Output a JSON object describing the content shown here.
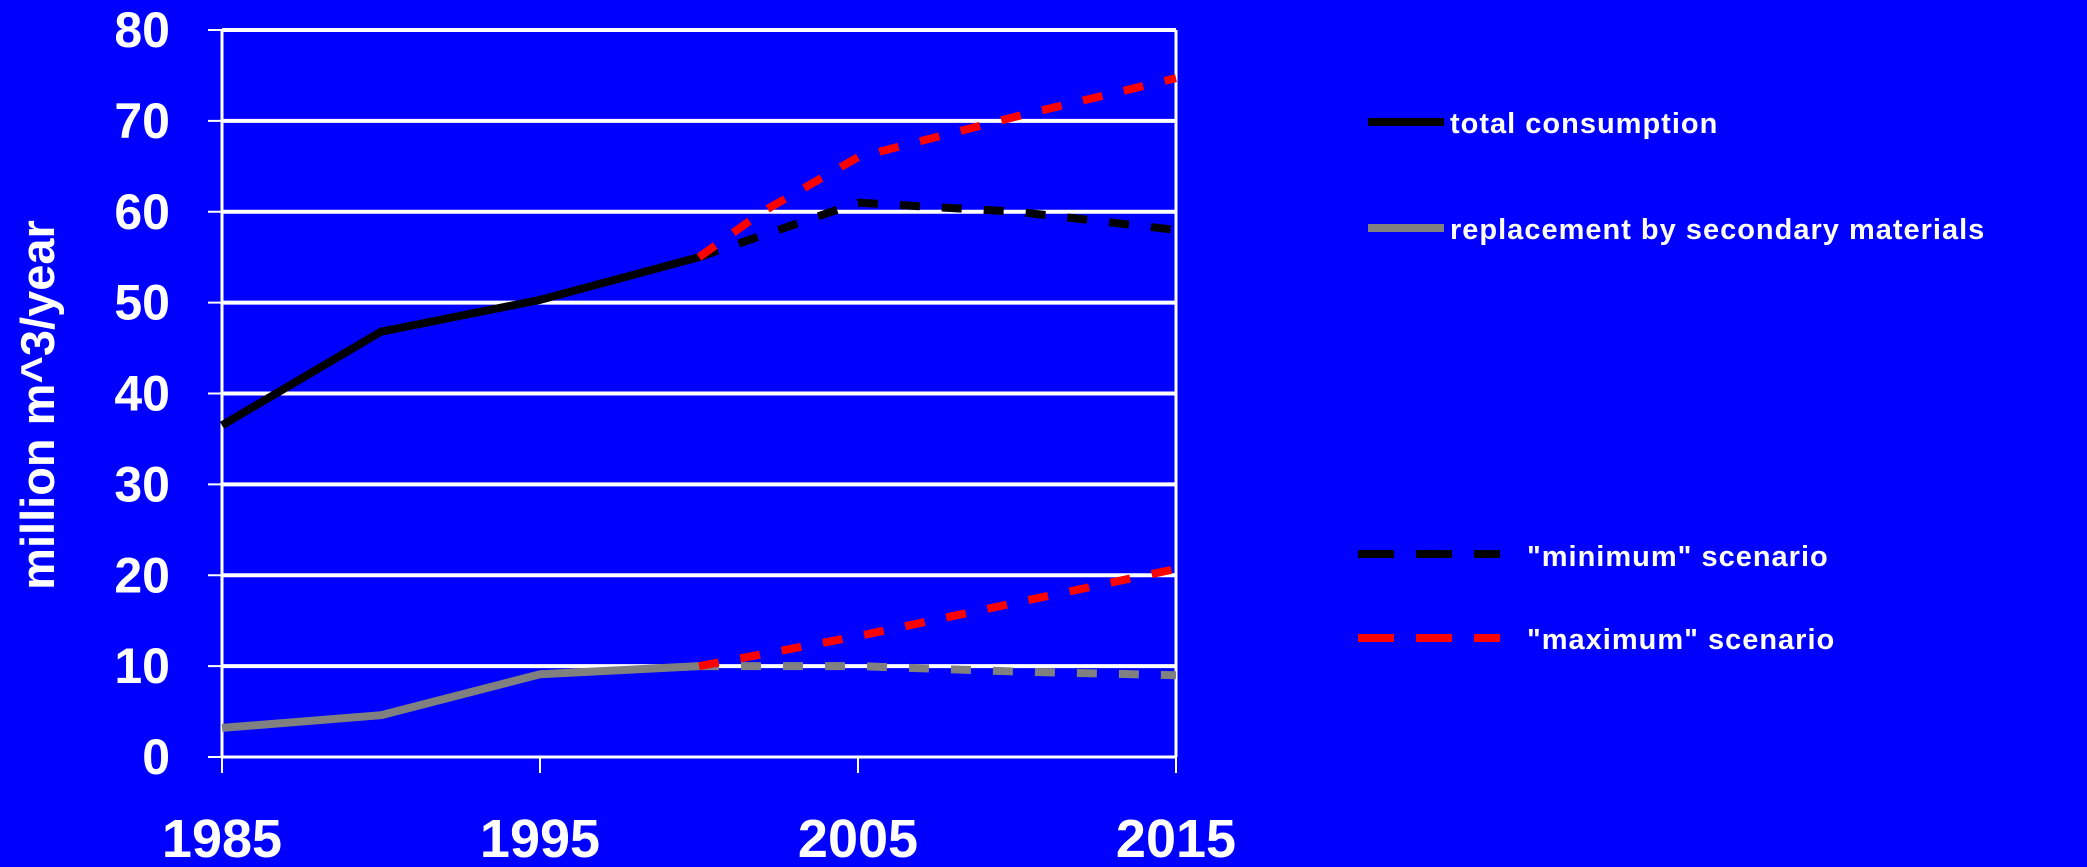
{
  "chart_data": {
    "type": "line",
    "title": "",
    "xlabel": "",
    "ylabel": "million m^3/year",
    "xlim": [
      1985,
      2015
    ],
    "ylim": [
      0,
      80
    ],
    "x_ticks": [
      1985,
      1995,
      2005,
      2015
    ],
    "y_ticks": [
      0,
      10,
      20,
      30,
      40,
      50,
      60,
      70,
      80
    ],
    "grid": "horizontal",
    "legend_position": "right",
    "series": [
      {
        "name": "total consumption",
        "color": "#000000",
        "style": "solid",
        "points": [
          [
            1985,
            36.5
          ],
          [
            1990,
            46.8
          ],
          [
            1995,
            50.3
          ],
          [
            2000,
            55
          ]
        ]
      },
      {
        "name": "replacement by secondary materials",
        "color": "#808080",
        "style": "solid",
        "points": [
          [
            1985,
            3.2
          ],
          [
            1990,
            4.6
          ],
          [
            1995,
            9.1
          ],
          [
            2000,
            10
          ]
        ]
      },
      {
        "name": "total consumption \"minimum\" scenario",
        "legend_ref": "minimum",
        "color": "#000000",
        "style": "dashed",
        "points": [
          [
            2000,
            55
          ],
          [
            2005,
            61
          ],
          [
            2010,
            60
          ],
          [
            2015,
            58
          ]
        ]
      },
      {
        "name": "total consumption \"maximum\" scenario",
        "legend_ref": "maximum",
        "color": "#FF0000",
        "style": "dashed",
        "points": [
          [
            2000,
            55
          ],
          [
            2002,
            60
          ],
          [
            2005,
            66
          ],
          [
            2010,
            70.5
          ],
          [
            2015,
            74.7
          ]
        ]
      },
      {
        "name": "replacement \"minimum\" scenario",
        "legend_ref": "minimum",
        "color": "#808080",
        "style": "dashed",
        "points": [
          [
            2000,
            10
          ],
          [
            2005,
            10
          ],
          [
            2010,
            9.4
          ],
          [
            2015,
            9
          ]
        ]
      },
      {
        "name": "replacement \"maximum\" scenario",
        "legend_ref": "maximum",
        "color": "#FF0000",
        "style": "dashed",
        "points": [
          [
            2000,
            10
          ],
          [
            2005,
            13.3
          ],
          [
            2010,
            17
          ],
          [
            2015,
            20.7
          ]
        ]
      }
    ],
    "legend": [
      {
        "key": "total",
        "label": "total consumption",
        "color": "#000000",
        "style": "solid"
      },
      {
        "key": "replacement",
        "label": "replacement by secondary materials",
        "color": "#808080",
        "style": "solid"
      },
      {
        "key": "minimum",
        "label": "\"minimum\" scenario",
        "color": "#000000",
        "style": "dashed"
      },
      {
        "key": "maximum",
        "label": "\"maximum\" scenario",
        "color": "#FF0000",
        "style": "dashed"
      }
    ]
  },
  "colors": {
    "background": "#0000FF",
    "grid": "#FFFFFF",
    "text": "#FFFFFF"
  }
}
